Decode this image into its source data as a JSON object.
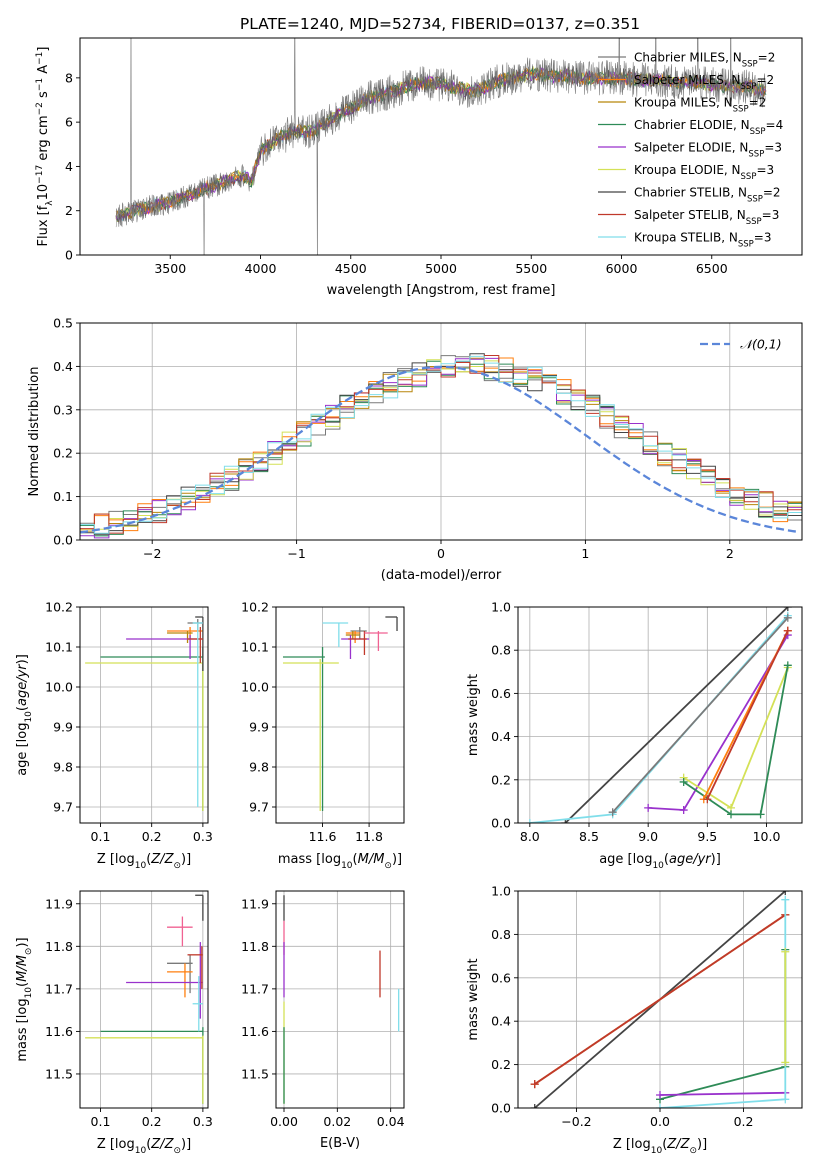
{
  "figure_title": "PLATE=1240, MJD=52734, FIBERID=0137, z=0.351",
  "colors": {
    "Chabrier MILES": "#7a7a7a",
    "Salpeter MILES": "#ff7f0e",
    "Kroupa MILES": "#b8860b",
    "Chabrier ELODIE": "#2e8b57",
    "Salpeter ELODIE": "#9932cc",
    "Kroupa ELODIE": "#d4e157",
    "Chabrier STELIB": "#444444",
    "Salpeter STELIB": "#c0392b",
    "Kroupa STELIB": "#80deea",
    "normal_curve": "#5b86d9"
  },
  "chart_data": [
    {
      "id": "spectrum",
      "type": "line",
      "xlabel": "wavelength [Angstrom, rest frame]",
      "ylabel": "Flux [f_λ 10^-17 erg cm^-2 s^-1 A^-1]",
      "xlim": [
        3000,
        7000
      ],
      "ylim": [
        0,
        9.8
      ],
      "xticks": [
        3500,
        4000,
        4500,
        5000,
        5500,
        6000,
        6500
      ],
      "yticks": [
        0,
        2,
        4,
        6,
        8
      ],
      "legend_position": "right",
      "legend": [
        {
          "label": "Chabrier MILES, N",
          "sub": "SSP",
          "tail": "=2",
          "key": "Chabrier MILES"
        },
        {
          "label": "Salpeter MILES, N",
          "sub": "SSP",
          "tail": "=2",
          "key": "Salpeter MILES"
        },
        {
          "label": "Kroupa MILES, N",
          "sub": "SSP",
          "tail": "=2",
          "key": "Kroupa MILES"
        },
        {
          "label": "Chabrier ELODIE, N",
          "sub": "SSP",
          "tail": "=4",
          "key": "Chabrier ELODIE"
        },
        {
          "label": "Salpeter ELODIE, N",
          "sub": "SSP",
          "tail": "=3",
          "key": "Salpeter ELODIE"
        },
        {
          "label": "Kroupa ELODIE, N",
          "sub": "SSP",
          "tail": "=3",
          "key": "Kroupa ELODIE"
        },
        {
          "label": "Chabrier STELIB, N",
          "sub": "SSP",
          "tail": "=2",
          "key": "Chabrier STELIB"
        },
        {
          "label": "Salpeter STELIB, N",
          "sub": "SSP",
          "tail": "=3",
          "key": "Salpeter STELIB"
        },
        {
          "label": "Kroupa STELIB, N",
          "sub": "SSP",
          "tail": "=3",
          "key": "Kroupa STELIB"
        }
      ],
      "continuum": [
        [
          3200,
          1.7
        ],
        [
          3300,
          2.0
        ],
        [
          3400,
          2.2
        ],
        [
          3500,
          2.4
        ],
        [
          3600,
          2.7
        ],
        [
          3700,
          3.0
        ],
        [
          3800,
          3.3
        ],
        [
          3900,
          3.6
        ],
        [
          3950,
          3.3
        ],
        [
          4000,
          4.7
        ],
        [
          4100,
          5.3
        ],
        [
          4200,
          5.6
        ],
        [
          4300,
          5.6
        ],
        [
          4400,
          6.2
        ],
        [
          4500,
          6.6
        ],
        [
          4600,
          7.1
        ],
        [
          4700,
          7.3
        ],
        [
          4800,
          7.6
        ],
        [
          4900,
          7.8
        ],
        [
          5000,
          7.7
        ],
        [
          5100,
          7.5
        ],
        [
          5200,
          7.4
        ],
        [
          5300,
          7.8
        ],
        [
          5400,
          8.0
        ],
        [
          5500,
          8.2
        ],
        [
          5600,
          8.1
        ],
        [
          5700,
          8.1
        ],
        [
          5800,
          8.0
        ],
        [
          5900,
          8.0
        ],
        [
          6000,
          8.0
        ],
        [
          6100,
          7.9
        ],
        [
          6200,
          7.9
        ],
        [
          6300,
          7.8
        ],
        [
          6400,
          7.8
        ],
        [
          6500,
          7.7
        ],
        [
          6600,
          7.6
        ],
        [
          6700,
          7.6
        ],
        [
          6800,
          7.4
        ]
      ]
    },
    {
      "id": "residuals",
      "type": "line",
      "xlabel": "(data-model)/error",
      "ylabel": "Normed distribution",
      "xlim": [
        -2.5,
        2.5
      ],
      "ylim": [
        0,
        0.5
      ],
      "xticks": [
        -2,
        -1,
        0,
        1,
        2
      ],
      "yticks": [
        0.0,
        0.1,
        0.2,
        0.3,
        0.4,
        0.5
      ],
      "legend_position": "top-right",
      "normal_label": "𝒩(0,1)",
      "bin_width": 0.1
    },
    {
      "id": "age_vs_Z",
      "type": "scatter",
      "xlabel": "Z [log10(Z/Z⊙)]",
      "ylabel": "age [log10(age/yr)]",
      "xlim": [
        0.06,
        0.31
      ],
      "ylim": [
        9.66,
        10.2
      ],
      "xticks": [
        0.1,
        0.2,
        0.3
      ],
      "yticks": [
        9.7,
        9.8,
        9.9,
        10.0,
        10.1,
        10.2
      ],
      "points": [
        {
          "key": "Chabrier MILES",
          "x": 0.29,
          "y": 10.16,
          "xlo": 0.27,
          "xhi": 0.3,
          "ylo": 10.14,
          "yhi": 10.17
        },
        {
          "key": "Salpeter MILES",
          "x": 0.275,
          "y": 10.14,
          "xlo": 0.23,
          "xhi": 0.3,
          "ylo": 10.12,
          "yhi": 10.15
        },
        {
          "key": "Kroupa MILES",
          "x": 0.27,
          "y": 10.135,
          "xlo": 0.23,
          "xhi": 0.28,
          "ylo": 10.11,
          "yhi": 10.14
        },
        {
          "key": "Chabrier ELODIE",
          "x": 0.3,
          "y": 10.075,
          "xlo": 0.1,
          "xhi": 0.3,
          "ylo": 9.69,
          "yhi": 10.1
        },
        {
          "key": "Salpeter ELODIE",
          "x": 0.275,
          "y": 10.12,
          "xlo": 0.15,
          "xhi": 0.3,
          "ylo": 10.07,
          "yhi": 10.13
        },
        {
          "key": "Kroupa ELODIE",
          "x": 0.3,
          "y": 10.06,
          "xlo": 0.07,
          "xhi": 0.3,
          "ylo": 9.69,
          "yhi": 10.07
        },
        {
          "key": "Chabrier STELIB",
          "x": 0.3,
          "y": 10.175,
          "xlo": 0.285,
          "xhi": 0.3,
          "ylo": 10.04,
          "yhi": 10.175
        },
        {
          "key": "Salpeter STELIB",
          "x": 0.295,
          "y": 10.12,
          "xlo": 0.27,
          "xhi": 0.3,
          "ylo": 10.06,
          "yhi": 10.15
        },
        {
          "key": "Kroupa STELIB",
          "x": 0.29,
          "y": 10.16,
          "xlo": 0.28,
          "xhi": 0.3,
          "ylo": 9.7,
          "yhi": 10.16
        }
      ]
    },
    {
      "id": "age_vs_mass",
      "type": "scatter",
      "xlabel": "mass [log10(M/M⊙)]",
      "ylabel": "",
      "xlim": [
        11.4,
        11.95
      ],
      "ylim": [
        9.66,
        10.2
      ],
      "xticks": [
        11.6,
        11.8
      ],
      "yticks": [
        9.7,
        9.8,
        9.9,
        10.0,
        10.1,
        10.2
      ],
      "points": [
        {
          "key": "Chabrier MILES",
          "x": 11.76,
          "y": 10.14,
          "xlo": 11.72,
          "xhi": 11.79,
          "ylo": 10.12,
          "yhi": 10.15
        },
        {
          "key": "Salpeter MILES",
          "x": 11.74,
          "y": 10.135,
          "xlo": 11.7,
          "xhi": 11.76,
          "ylo": 10.11,
          "yhi": 10.14
        },
        {
          "key": "Kroupa MILES",
          "x": 11.73,
          "y": 10.13,
          "xlo": 11.7,
          "xhi": 11.76,
          "ylo": 10.12,
          "yhi": 10.14
        },
        {
          "key": "Chabrier ELODIE",
          "x": 11.6,
          "y": 10.075,
          "xlo": 11.43,
          "xhi": 11.61,
          "ylo": 9.69,
          "yhi": 10.1
        },
        {
          "key": "Salpeter ELODIE",
          "x": 11.72,
          "y": 10.12,
          "xlo": 11.68,
          "xhi": 11.8,
          "ylo": 10.07,
          "yhi": 10.13
        },
        {
          "key": "Kroupa ELODIE",
          "x": 11.59,
          "y": 10.06,
          "xlo": 11.43,
          "xhi": 11.67,
          "ylo": 9.69,
          "yhi": 10.07
        },
        {
          "key": "Chabrier STELIB",
          "x": 11.92,
          "y": 10.175,
          "xlo": 11.87,
          "xhi": 11.92,
          "ylo": 10.14,
          "yhi": 10.175
        },
        {
          "key": "Salpeter STELIB",
          "x": 11.78,
          "y": 10.12,
          "xlo": 11.71,
          "xhi": 11.79,
          "ylo": 10.08,
          "yhi": 10.14
        },
        {
          "key": "Kroupa STELIB",
          "x": 11.67,
          "y": 10.16,
          "xlo": 11.6,
          "xhi": 11.71,
          "ylo": 10.1,
          "yhi": 10.16
        },
        {
          "key": "pink",
          "x": 11.84,
          "y": 10.135,
          "xlo": 11.78,
          "xhi": 11.88,
          "ylo": 10.09,
          "yhi": 10.14
        }
      ]
    },
    {
      "id": "mass_weight_vs_age",
      "type": "line",
      "xlabel": "age [log10(age/yr)]",
      "ylabel": "mass weight",
      "xlim": [
        7.9,
        10.3
      ],
      "ylim": [
        0,
        1
      ],
      "xticks": [
        8.0,
        8.5,
        9.0,
        9.5,
        10.0
      ],
      "yticks": [
        0.0,
        0.2,
        0.4,
        0.6,
        0.8,
        1.0
      ],
      "series": [
        {
          "key": "Chabrier STELIB",
          "x": [
            8.3,
            10.18
          ],
          "y": [
            0.0,
            1.0
          ]
        },
        {
          "key": "Kroupa STELIB",
          "x": [
            8.0,
            8.7,
            10.18
          ],
          "y": [
            0.0,
            0.04,
            0.96
          ]
        },
        {
          "key": "Salpeter ELODIE",
          "x": [
            9.0,
            9.3,
            10.18
          ],
          "y": [
            0.07,
            0.06,
            0.87
          ]
        },
        {
          "key": "Kroupa ELODIE",
          "x": [
            9.3,
            9.7,
            10.18
          ],
          "y": [
            0.21,
            0.07,
            0.72
          ]
        },
        {
          "key": "Chabrier ELODIE",
          "x": [
            9.3,
            9.7,
            9.95,
            10.18
          ],
          "y": [
            0.19,
            0.04,
            0.04,
            0.73
          ]
        },
        {
          "key": "Salpeter MILES",
          "x": [
            9.47,
            10.18
          ],
          "y": [
            0.11,
            0.89
          ]
        },
        {
          "key": "Salpeter STELIB",
          "x": [
            9.5,
            10.18
          ],
          "y": [
            0.11,
            0.89
          ]
        },
        {
          "key": "Chabrier MILES",
          "x": [
            8.7,
            10.18
          ],
          "y": [
            0.05,
            0.95
          ]
        }
      ]
    },
    {
      "id": "mass_vs_Z",
      "type": "scatter",
      "xlabel": "Z [log10(Z/Z⊙)]",
      "ylabel": "mass [log10(M/M⊙)]",
      "xlim": [
        0.06,
        0.31
      ],
      "ylim": [
        11.42,
        11.93
      ],
      "xticks": [
        0.1,
        0.2,
        0.3
      ],
      "yticks": [
        11.5,
        11.6,
        11.7,
        11.8,
        11.9
      ],
      "points": [
        {
          "key": "Chabrier MILES",
          "x": 0.275,
          "y": 11.76,
          "xlo": 0.23,
          "xhi": 0.28,
          "ylo": 11.69,
          "yhi": 11.78
        },
        {
          "key": "Salpeter MILES",
          "x": 0.265,
          "y": 11.74,
          "xlo": 0.23,
          "xhi": 0.28,
          "ylo": 11.68,
          "yhi": 11.76
        },
        {
          "key": "pink",
          "x": 0.26,
          "y": 11.845,
          "xlo": 0.23,
          "xhi": 0.28,
          "ylo": 11.8,
          "yhi": 11.87
        },
        {
          "key": "Chabrier ELODIE",
          "x": 0.3,
          "y": 11.6,
          "xlo": 0.1,
          "xhi": 0.3,
          "ylo": 11.43,
          "yhi": 11.61
        },
        {
          "key": "Salpeter ELODIE",
          "x": 0.295,
          "y": 11.715,
          "xlo": 0.15,
          "xhi": 0.3,
          "ylo": 11.63,
          "yhi": 11.81
        },
        {
          "key": "Kroupa ELODIE",
          "x": 0.3,
          "y": 11.585,
          "xlo": 0.07,
          "xhi": 0.3,
          "ylo": 11.43,
          "yhi": 11.59
        },
        {
          "key": "Chabrier STELIB",
          "x": 0.3,
          "y": 11.92,
          "xlo": 0.285,
          "xhi": 0.3,
          "ylo": 11.86,
          "yhi": 11.92
        },
        {
          "key": "Salpeter STELIB",
          "x": 0.298,
          "y": 11.78,
          "xlo": 0.27,
          "xhi": 0.3,
          "ylo": 11.7,
          "yhi": 11.8
        },
        {
          "key": "Kroupa STELIB",
          "x": 0.292,
          "y": 11.665,
          "xlo": 0.28,
          "xhi": 0.3,
          "ylo": 11.6,
          "yhi": 11.73
        }
      ]
    },
    {
      "id": "mass_vs_ebv",
      "type": "scatter",
      "xlabel": "E(B-V)",
      "ylabel": "",
      "xlim": [
        -0.003,
        0.045
      ],
      "ylim": [
        11.42,
        11.93
      ],
      "xticks": [
        0.0,
        0.02,
        0.04
      ],
      "yticks": [
        11.5,
        11.6,
        11.7,
        11.8,
        11.9
      ],
      "points": [
        {
          "key": "Chabrier STELIB",
          "x": 0.0,
          "y": 11.9,
          "ylo": 11.86,
          "yhi": 11.92
        },
        {
          "key": "pink",
          "x": 0.0,
          "y": 11.82,
          "ylo": 11.78,
          "yhi": 11.86
        },
        {
          "key": "Salpeter ELODIE",
          "x": 0.0,
          "y": 11.75,
          "ylo": 11.68,
          "yhi": 11.81
        },
        {
          "key": "Kroupa ELODIE",
          "x": 0.0,
          "y": 11.55,
          "ylo": 11.43,
          "yhi": 11.67
        },
        {
          "key": "Chabrier ELODIE",
          "x": 0.0,
          "y": 11.52,
          "ylo": 11.43,
          "yhi": 11.61
        },
        {
          "key": "Salpeter STELIB",
          "x": 0.036,
          "y": 11.735,
          "ylo": 11.68,
          "yhi": 11.79
        },
        {
          "key": "Kroupa STELIB",
          "x": 0.043,
          "y": 11.65,
          "ylo": 11.6,
          "yhi": 11.7
        }
      ]
    },
    {
      "id": "mass_weight_vs_Z",
      "type": "line",
      "xlabel": "Z [log10(Z/Z⊙)]",
      "ylabel": "mass weight",
      "xlim": [
        -0.34,
        0.34
      ],
      "ylim": [
        0,
        1
      ],
      "xticks": [
        -0.2,
        0.0,
        0.2
      ],
      "yticks": [
        0.0,
        0.2,
        0.4,
        0.6,
        0.8,
        1.0
      ],
      "series": [
        {
          "key": "Chabrier STELIB",
          "x": [
            -0.3,
            0.3
          ],
          "y": [
            0.0,
            1.0
          ]
        },
        {
          "key": "Chabrier MILES",
          "x": [
            -0.3,
            0.3
          ],
          "y": [
            0.11,
            0.89
          ]
        },
        {
          "key": "Salpeter MILES",
          "x": [
            -0.3,
            0.3
          ],
          "y": [
            0.11,
            0.89
          ]
        },
        {
          "key": "Salpeter STELIB",
          "x": [
            -0.3,
            0.3
          ],
          "y": [
            0.11,
            0.89
          ]
        },
        {
          "key": "Chabrier ELODIE",
          "x": [
            0.0,
            0.3,
            0.3
          ],
          "y": [
            0.04,
            0.19,
            0.73
          ]
        },
        {
          "key": "Salpeter ELODIE",
          "x": [
            0.0,
            0.3
          ],
          "y": [
            0.06,
            0.07
          ]
        },
        {
          "key": "Kroupa STELIB",
          "x": [
            0.0,
            0.3,
            0.3
          ],
          "y": [
            0.0,
            0.04,
            0.96
          ]
        },
        {
          "key": "Kroupa ELODIE",
          "x": [
            0.3,
            0.3
          ],
          "y": [
            0.21,
            0.72
          ]
        }
      ]
    }
  ]
}
